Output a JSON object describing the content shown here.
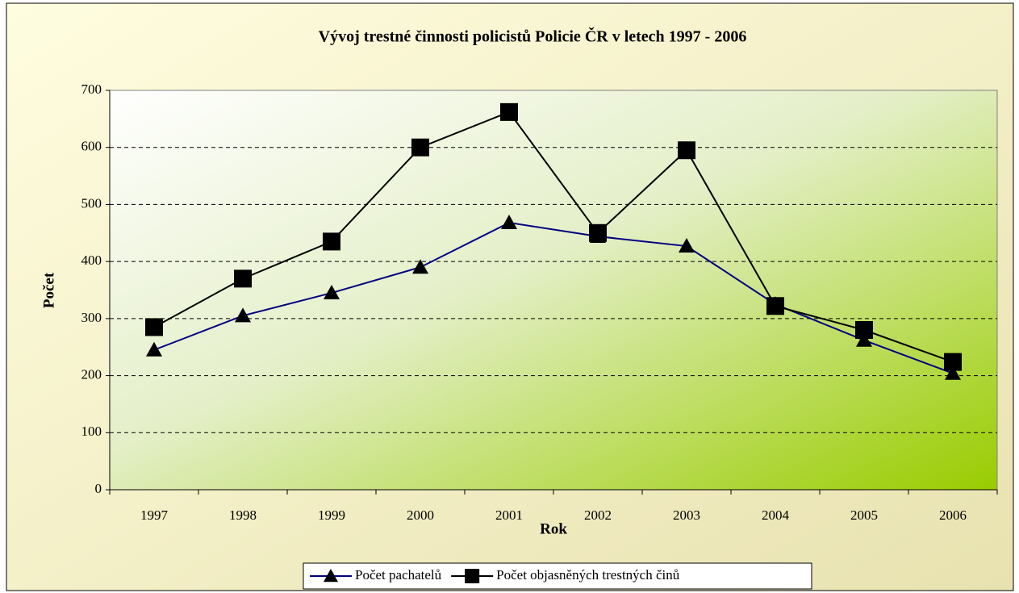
{
  "chart_data": {
    "type": "line",
    "title": "Vývoj trestné činnosti policistů Policie ČR v letech 1997 - 2006",
    "x_label": "Rok",
    "y_label": "Počet",
    "categories": [
      "1997",
      "1998",
      "1999",
      "2000",
      "2001",
      "2002",
      "2003",
      "2004",
      "2005",
      "2006"
    ],
    "series": [
      {
        "name": "Počet  pachatelů",
        "color": "#000080",
        "marker": "triangle",
        "values": [
          245,
          305,
          345,
          390,
          468,
          444,
          427,
          325,
          262,
          204
        ]
      },
      {
        "name": "Počet objasněných trestných činů",
        "color": "#000000",
        "marker": "square",
        "values": [
          285,
          370,
          435,
          600,
          662,
          450,
          595,
          322,
          280,
          224
        ]
      }
    ],
    "ylim": [
      0,
      700
    ],
    "yticks": [
      0,
      100,
      200,
      300,
      400,
      500,
      600,
      700
    ],
    "grid": true,
    "legend": "bottom"
  }
}
